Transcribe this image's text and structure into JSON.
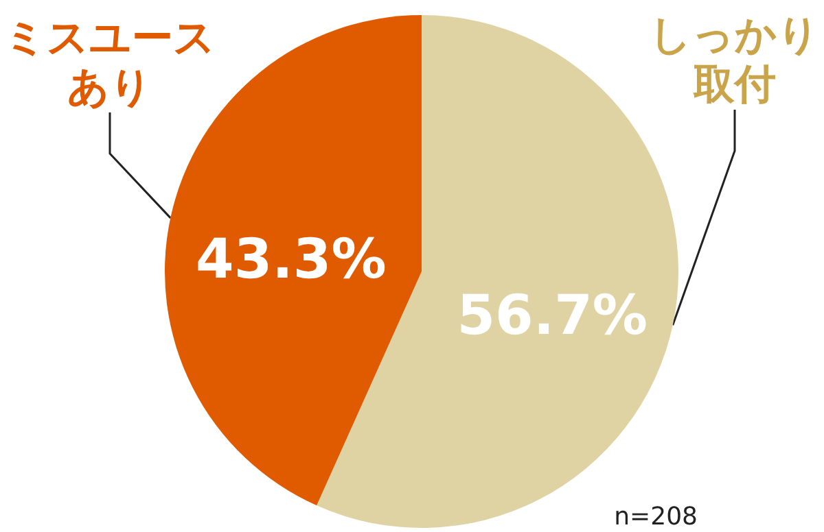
{
  "chart_data": {
    "type": "pie",
    "categories": [
      "しっかり取付",
      "ミスユースあり"
    ],
    "values": [
      56.7,
      43.3
    ],
    "colors": [
      "#e0d3a3",
      "#e05a00"
    ],
    "value_labels": [
      "56.7%",
      "43.3%"
    ],
    "annotations": [
      "n=208"
    ],
    "legend": false
  }
}
